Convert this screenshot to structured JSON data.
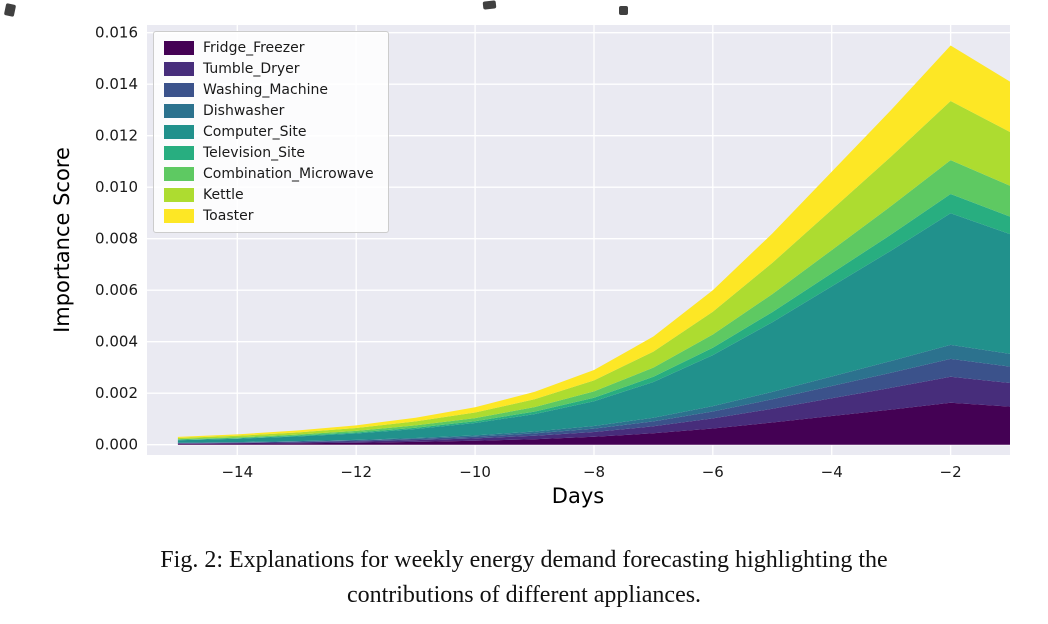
{
  "caption": {
    "lines": [
      "Fig. 2: Explanations for weekly energy demand forecasting highlighting the",
      "contributions of different appliances."
    ]
  },
  "chart_data": {
    "type": "area",
    "stacked": true,
    "title": "",
    "xlabel": "Days",
    "ylabel": "Importance Score",
    "xlim": [
      -15.52,
      -1
    ],
    "ylim": [
      -0.0004,
      0.0163
    ],
    "xticks": [
      -14,
      -12,
      -10,
      -8,
      -6,
      -4,
      -2
    ],
    "xtick_labels": [
      "−14",
      "−12",
      "−10",
      "−8",
      "−6",
      "−4",
      "−2"
    ],
    "yticks": [
      0,
      0.002,
      0.004,
      0.006,
      0.008,
      0.01,
      0.012,
      0.014,
      0.016
    ],
    "ytick_labels": [
      "0.000",
      "0.002",
      "0.004",
      "0.006",
      "0.008",
      "0.010",
      "0.012",
      "0.014",
      "0.016"
    ],
    "grid": true,
    "plot_bg": "#eaeaf2",
    "grid_color": "#ffffff",
    "legend_position": "upper-left",
    "x": [
      -15,
      -14,
      -13,
      -12,
      -11,
      -10,
      -9,
      -8,
      -7,
      -6,
      -5,
      -4,
      -3,
      -2,
      -1
    ],
    "series": [
      {
        "name": "Fridge_Freezer",
        "color": "#440154",
        "values": [
          3.2e-05,
          4.2e-05,
          5.8e-05,
          7.9e-05,
          0.00011,
          0.000152,
          0.000215,
          0.000305,
          0.000441,
          0.00063,
          0.000861,
          0.001113,
          0.001365,
          0.001628,
          0.001481
        ]
      },
      {
        "name": "Tumble_Dryer",
        "color": "#472d7b",
        "values": [
          2e-05,
          2.6e-05,
          3.6e-05,
          4.9e-05,
          6.8e-05,
          9.4e-05,
          0.000133,
          0.000189,
          0.000273,
          0.00039,
          0.000533,
          0.000689,
          0.000845,
          0.001008,
          0.000917
        ]
      },
      {
        "name": "Washing_Machine",
        "color": "#3b528b",
        "values": [
          1.4e-05,
          1.8e-05,
          2.5e-05,
          3.4e-05,
          4.7e-05,
          6.5e-05,
          9.2e-05,
          0.000131,
          0.000189,
          0.00027,
          0.000369,
          0.000477,
          0.000585,
          0.000698,
          0.000635
        ]
      },
      {
        "name": "Dishwasher",
        "color": "#2c728e",
        "values": [
          1.1e-05,
          1.4e-05,
          1.9e-05,
          2.6e-05,
          3.7e-05,
          5.1e-05,
          7.2e-05,
          0.000102,
          0.000147,
          0.00021,
          0.000287,
          0.000371,
          0.000455,
          0.000543,
          0.000494
        ]
      },
      {
        "name": "Computer_Site",
        "color": "#21918c",
        "values": [
          9.9e-05,
          0.000132,
          0.000182,
          0.000248,
          0.000347,
          0.000479,
          0.000677,
          0.000957,
          0.001386,
          0.00198,
          0.002706,
          0.003498,
          0.00429,
          0.005115,
          0.004653
        ]
      },
      {
        "name": "Television_Site",
        "color": "#28ae80",
        "values": [
          1.4e-05,
          1.9e-05,
          2.6e-05,
          3.6e-05,
          5e-05,
          7e-05,
          9.8e-05,
          0.000139,
          0.000202,
          0.000288,
          0.000394,
          0.000509,
          0.000624,
          0.000744,
          0.000677
        ]
      },
      {
        "name": "Combination_Microwave",
        "color": "#5ec962",
        "values": [
          2.6e-05,
          3.4e-05,
          4.7e-05,
          6.4e-05,
          8.9e-05,
          0.000123,
          0.000174,
          0.000247,
          0.000357,
          0.00051,
          0.000697,
          0.000901,
          0.001105,
          0.001318,
          0.001199
        ]
      },
      {
        "name": "Kettle",
        "color": "#addc30",
        "values": [
          4.4e-05,
          5.9e-05,
          8.1e-05,
          0.000111,
          0.000155,
          0.000215,
          0.000303,
          0.000429,
          0.000622,
          0.000888,
          0.001214,
          0.001569,
          0.001924,
          0.002294,
          0.002087
        ]
      },
      {
        "name": "Toaster",
        "color": "#fde725",
        "values": [
          4.2e-05,
          5.6e-05,
          7.7e-05,
          0.000104,
          0.000146,
          0.000202,
          0.000285,
          0.000403,
          0.000584,
          0.000834,
          0.00114,
          0.001473,
          0.001807,
          0.002155,
          0.00196
        ]
      }
    ]
  }
}
